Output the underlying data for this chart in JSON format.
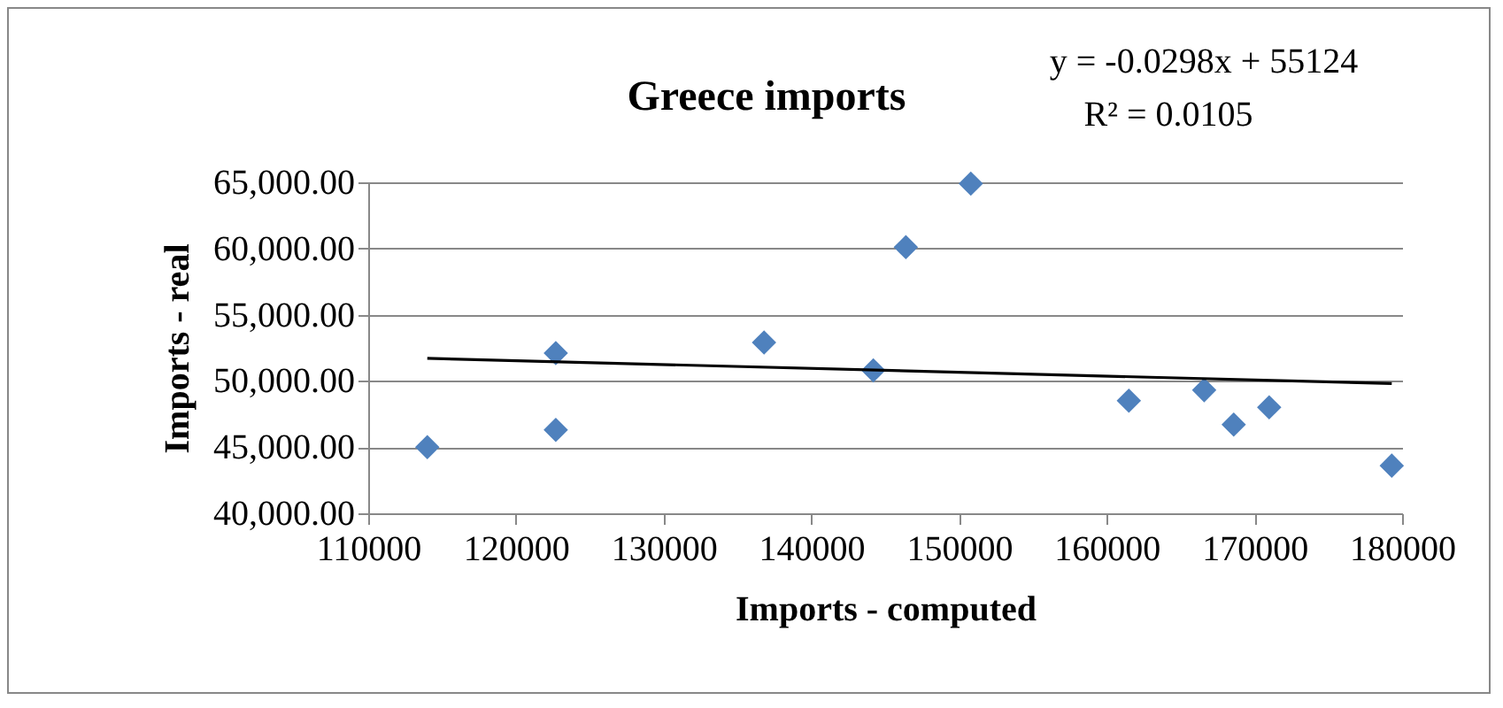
{
  "chart_data": {
    "type": "scatter",
    "title": "Greece imports",
    "xlabel": "Imports - computed",
    "ylabel": "Imports - real",
    "annotations": [
      "y = -0.0298x + 55124",
      "R² = 0.0105"
    ],
    "series": [
      {
        "color": "#4f81bd",
        "marker": "diamond",
        "x": [
          114000,
          122700,
          122700,
          136800,
          144200,
          146400,
          150800,
          161500,
          166600,
          168600,
          171000,
          179300
        ],
        "values": [
          45000,
          46300,
          52100,
          52900,
          50800,
          60100,
          64900,
          48500,
          49300,
          46700,
          48000,
          43600
        ]
      },
      {
        "type": "line",
        "color": "#000000",
        "line_style": "solid",
        "x": [
          114000,
          179300
        ],
        "values": [
          51700,
          49800
        ]
      }
    ],
    "xlim": [
      110000,
      180000
    ],
    "xticks": [
      110000,
      120000,
      130000,
      140000,
      150000,
      160000,
      170000,
      180000
    ],
    "ylim": [
      40000,
      65000
    ],
    "yticks": [
      {
        "value": 40000,
        "label": "40,000.00"
      },
      {
        "value": 45000,
        "label": "45,000.00"
      },
      {
        "value": 50000,
        "label": "50,000.00"
      },
      {
        "value": 55000,
        "label": "55,000.00"
      },
      {
        "value": 60000,
        "label": "60,000.00"
      },
      {
        "value": 65000,
        "label": "65,000.00"
      }
    ],
    "grid": "y"
  }
}
